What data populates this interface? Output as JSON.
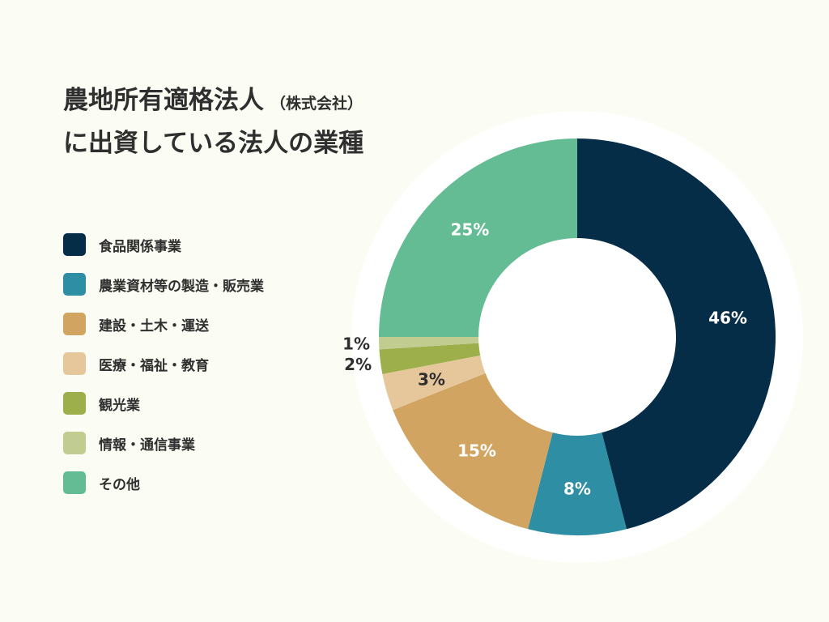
{
  "title": {
    "line1": "農地所有適格法人",
    "subtitle": "（株式会社）",
    "line2": "に出資している法人の業種"
  },
  "chart_data": {
    "type": "pie",
    "donut": true,
    "legend_position": "left",
    "title": "農地所有適格法人（株式会社）に出資している法人の業種",
    "unit": "%",
    "slices": [
      {
        "label": "食品関係事業",
        "value": 46,
        "display": "46%",
        "color": "#052d47",
        "text_color": "#ffffff"
      },
      {
        "label": "農業資材等の製造・販売業",
        "value": 8,
        "display": "8%",
        "color": "#2e8ea3",
        "text_color": "#ffffff"
      },
      {
        "label": "建設・土木・運送",
        "value": 15,
        "display": "15%",
        "color": "#d1a561",
        "text_color": "#ffffff"
      },
      {
        "label": "医療・福祉・教育",
        "value": 3,
        "display": "3%",
        "color": "#e6c79c",
        "text_color": "#2f2f2f"
      },
      {
        "label": "観光業",
        "value": 2,
        "display": "2%",
        "color": "#9caf4a",
        "text_color": "#2f2f2f"
      },
      {
        "label": "情報・通信事業",
        "value": 1,
        "display": "1%",
        "color": "#c1cc91",
        "text_color": "#2f2f2f"
      },
      {
        "label": "その他",
        "value": 25,
        "display": "25%",
        "color": "#63bc93",
        "text_color": "#ffffff"
      }
    ]
  }
}
